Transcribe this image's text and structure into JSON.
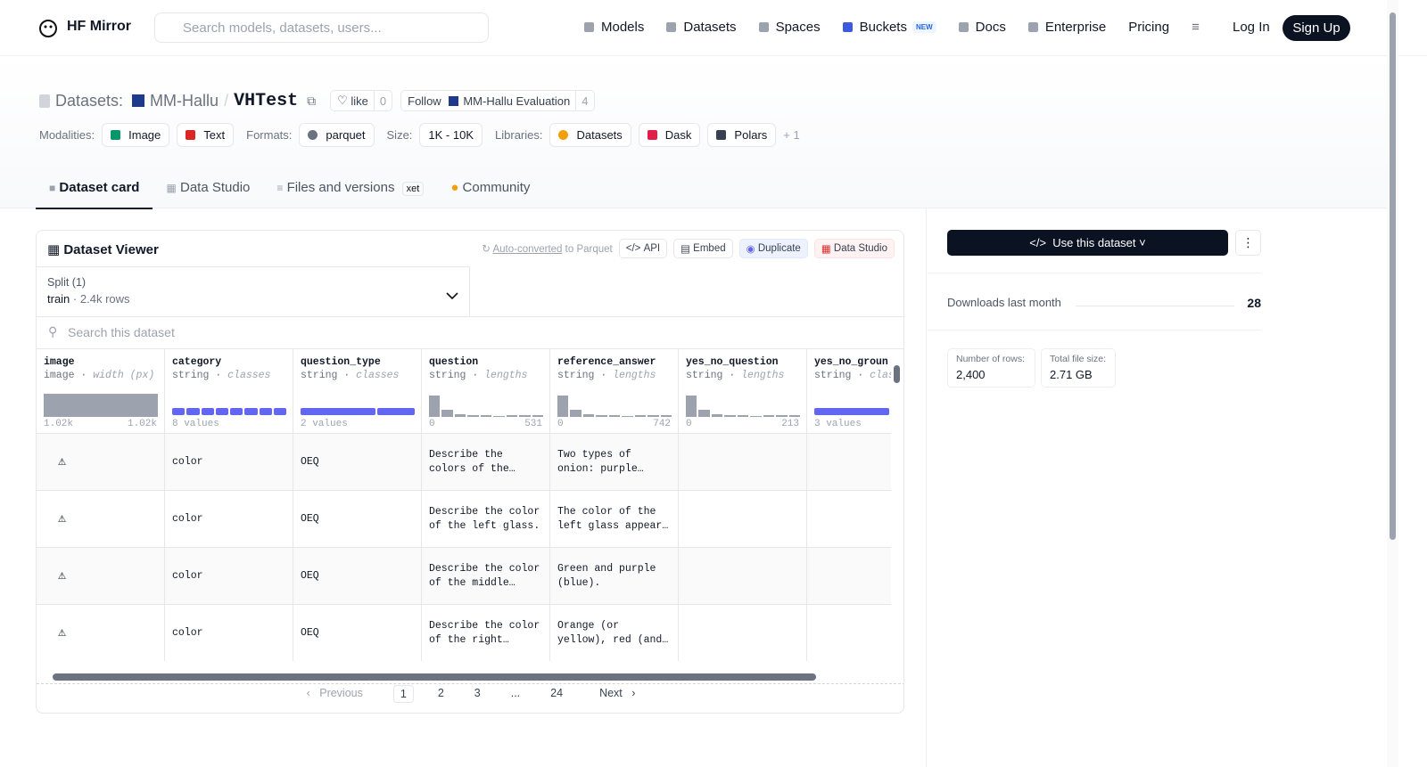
{
  "nav": {
    "brand": "HF Mirror",
    "search_placeholder": "Search models, datasets, users...",
    "links": [
      "Models",
      "Datasets",
      "Spaces",
      "Buckets",
      "Docs",
      "Enterprise",
      "Pricing"
    ],
    "buckets_badge": "NEW",
    "login": "Log In",
    "signup": "Sign Up"
  },
  "header": {
    "prefix": "Datasets:",
    "owner": "MM-Hallu",
    "separator": "/",
    "name": "VHTest",
    "like": "like",
    "likes": 0,
    "follow": "Follow",
    "follow_org": "MM-Hallu Evaluation",
    "followers": 4,
    "meta": [
      {
        "label": "Modalities:",
        "tags": [
          "Image",
          "Text"
        ]
      },
      {
        "label": "Formats:",
        "tags": [
          "parquet"
        ]
      },
      {
        "label": "Size:",
        "tags": [
          "1K - 10K"
        ]
      },
      {
        "label": "Libraries:",
        "tags": [
          "Datasets",
          "Dask",
          "Polars"
        ]
      }
    ],
    "more": "+ 1"
  },
  "tabs": {
    "items": [
      "Dataset card",
      "Data Studio",
      "Files and versions",
      "Community"
    ],
    "xet_badge": "xet"
  },
  "viewer": {
    "title": "Dataset Viewer",
    "auto_converted": "Auto-converted",
    "to_parquet": "to Parquet",
    "actions": [
      "API",
      "Embed",
      "Duplicate",
      "Data Studio"
    ],
    "split_label": "Split (1)",
    "split": "train",
    "split_rows": "2.4k rows",
    "search_placeholder": "Search this dataset",
    "columns": [
      {
        "name": "image",
        "type": "image",
        "detail": "width (px)",
        "summary": {
          "min": "1.02k",
          "max": "1.02k"
        }
      },
      {
        "name": "category",
        "type": "string",
        "detail": "classes",
        "summary": "8 values"
      },
      {
        "name": "question_type",
        "type": "string",
        "detail": "classes",
        "summary": "2 values"
      },
      {
        "name": "question",
        "type": "string",
        "detail": "lengths",
        "summary": {
          "min": 0,
          "max": 531
        }
      },
      {
        "name": "reference_answer",
        "type": "string",
        "detail": "lengths",
        "summary": {
          "min": 0,
          "max": 742
        }
      },
      {
        "name": "yes_no_question",
        "type": "string",
        "detail": "lengths",
        "summary": {
          "min": 0,
          "max": 213
        }
      },
      {
        "name": "yes_no_groun",
        "type": "string",
        "detail": "clas",
        "summary": "3 values"
      }
    ],
    "rows": [
      [
        null,
        "color",
        "OEQ",
        "Describe the colors of the…",
        "Two types of onion: purple…",
        null,
        null
      ],
      [
        null,
        "color",
        "OEQ",
        "Describe the color of the left glass.",
        "The color of the left glass appear…",
        null,
        null
      ],
      [
        null,
        "color",
        "OEQ",
        "Describe the color of the middle…",
        "Green and purple (blue).",
        null,
        null
      ],
      [
        null,
        "color",
        "OEQ",
        "Describe the color of the right…",
        "Orange (or yellow), red (and…",
        null,
        null
      ]
    ],
    "pagination": {
      "previous": "Previous",
      "pages": [
        "1",
        "2",
        "3",
        "...",
        "24"
      ],
      "next": "Next"
    }
  },
  "sidebar": {
    "use_button": "Use this dataset",
    "downloads_label": "Downloads last month",
    "downloads": 28,
    "rows_label": "Number of rows:",
    "rows": "2,400",
    "size_label": "Total file size:",
    "size": "2.71 GB"
  }
}
